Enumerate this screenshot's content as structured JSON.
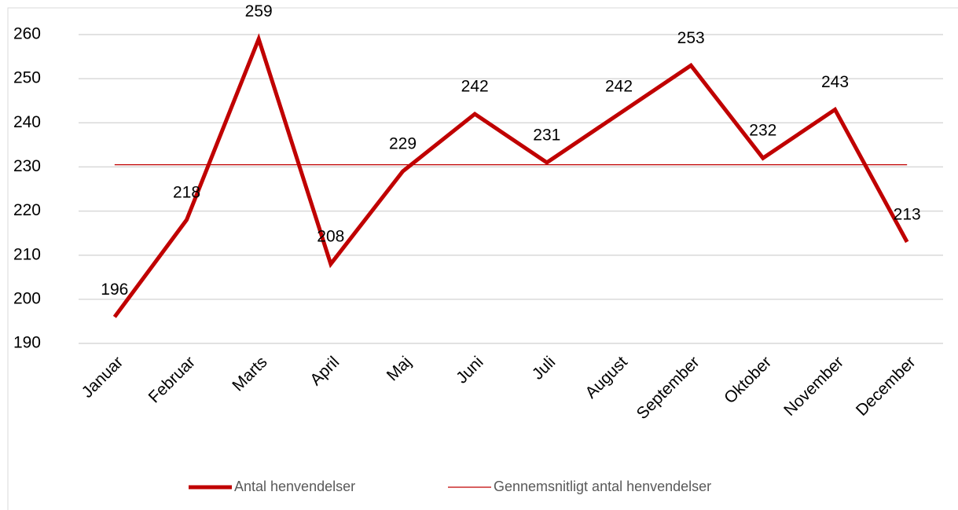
{
  "chart_data": {
    "type": "line",
    "categories": [
      "Januar",
      "Februar",
      "Marts",
      "April",
      "Maj",
      "Juni",
      "Juli",
      "August",
      "September",
      "Oktober",
      "November",
      "December"
    ],
    "series": [
      {
        "name": "Antal henvendelser",
        "color": "#c00000",
        "values": [
          196,
          218,
          259,
          208,
          229,
          242,
          231,
          242,
          253,
          232,
          243,
          213
        ]
      },
      {
        "name": "Gennemsnitligt antal henvendelser",
        "color": "#c00000",
        "values": [
          230.5,
          230.5,
          230.5,
          230.5,
          230.5,
          230.5,
          230.5,
          230.5,
          230.5,
          230.5,
          230.5,
          230.5
        ]
      }
    ],
    "ylim": [
      190,
      260
    ],
    "yticks": [
      190,
      200,
      210,
      220,
      230,
      240,
      250,
      260
    ],
    "grid": true,
    "legend": "bottom"
  }
}
